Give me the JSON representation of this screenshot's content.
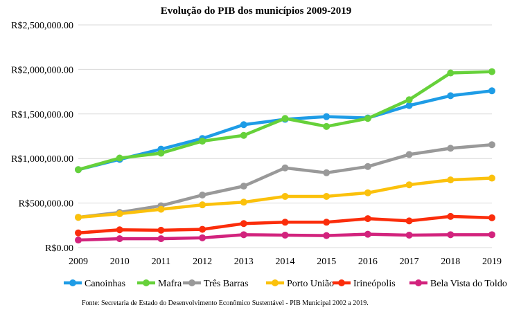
{
  "chart_data": {
    "type": "line",
    "title": "Evolução do PIB dos municípios 2009-2019",
    "x": [
      "2009",
      "2010",
      "2011",
      "2012",
      "2013",
      "2014",
      "2015",
      "2016",
      "2017",
      "2018",
      "2019"
    ],
    "ylim": [
      0,
      2500000
    ],
    "ytick_labels": [
      "R$0.00",
      "R$500,000.00",
      "R$1,000,000.00",
      "R$1,500,000.00",
      "R$2,000,000.00",
      "R$2,500,000.00"
    ],
    "ytick_values": [
      0,
      500000,
      1000000,
      1500000,
      2000000,
      2500000
    ],
    "grid": "horizontal",
    "legend": "bottom",
    "series": [
      {
        "name": "Canoinhas",
        "color": "#1e9ce6",
        "values": [
          875000,
          990000,
          1105000,
          1225000,
          1380000,
          1440000,
          1470000,
          1455000,
          1595000,
          1705000,
          1760000
        ]
      },
      {
        "name": "Mafra",
        "color": "#66d13a",
        "values": [
          875000,
          1005000,
          1060000,
          1195000,
          1260000,
          1450000,
          1360000,
          1450000,
          1660000,
          1960000,
          1975000
        ]
      },
      {
        "name": "Três Barras",
        "color": "#999999",
        "values": [
          340000,
          395000,
          470000,
          590000,
          690000,
          895000,
          840000,
          910000,
          1045000,
          1115000,
          1155000
        ]
      },
      {
        "name": "Porto União",
        "color": "#fbc10c",
        "values": [
          340000,
          380000,
          430000,
          480000,
          510000,
          575000,
          575000,
          615000,
          705000,
          760000,
          780000
        ]
      },
      {
        "name": "Irineópolis",
        "color": "#fb2d0b",
        "values": [
          165000,
          200000,
          195000,
          205000,
          270000,
          285000,
          285000,
          325000,
          300000,
          350000,
          335000
        ]
      },
      {
        "name": "Bela Vista do Toldo",
        "color": "#d2237d",
        "values": [
          85000,
          100000,
          100000,
          110000,
          145000,
          140000,
          135000,
          150000,
          140000,
          145000,
          145000
        ]
      }
    ],
    "source": "Fonte: Secretaria de Estado do Desenvolvimento Econômico Sustentável  - PIB Municipal 2002 a 2019."
  }
}
